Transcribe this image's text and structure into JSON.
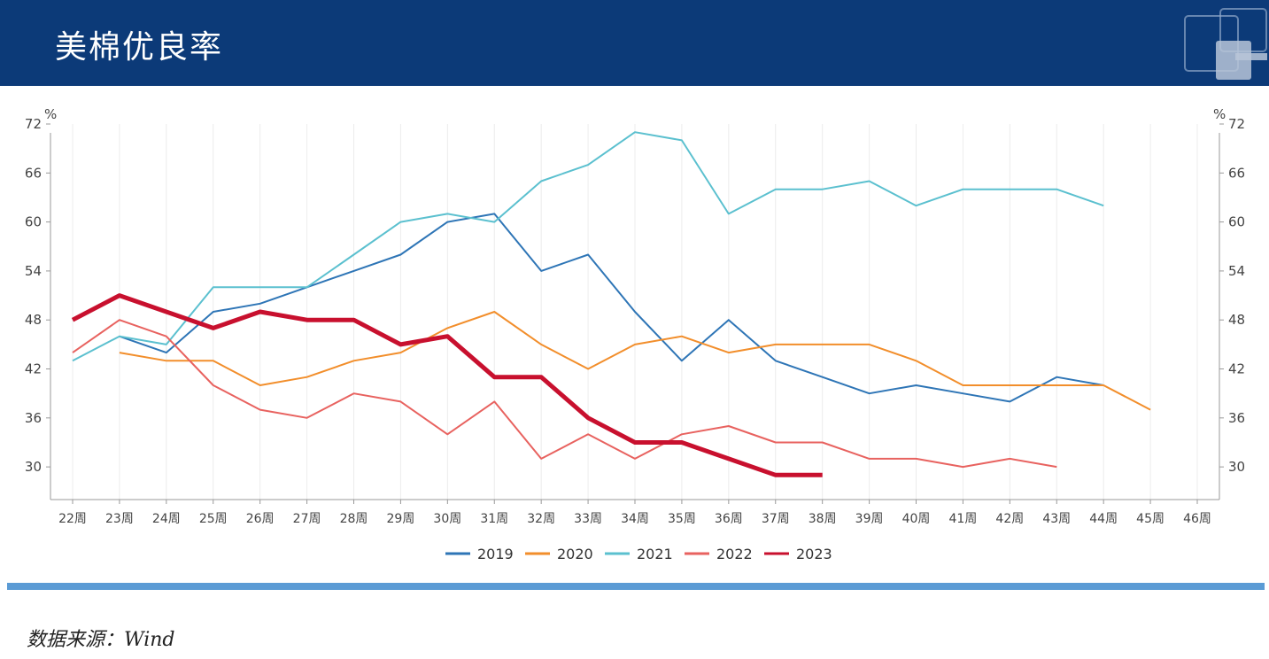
{
  "header": {
    "title": "美棉优良率"
  },
  "footer": {
    "source": "数据来源：Wind"
  },
  "chart_data": {
    "type": "line",
    "ylabel_left": "%",
    "ylabel_right": "%",
    "ylim": [
      26,
      72
    ],
    "yticks": [
      30,
      36,
      42,
      48,
      54,
      60,
      66,
      72
    ],
    "categories": [
      "22周",
      "23周",
      "24周",
      "25周",
      "26周",
      "27周",
      "28周",
      "29周",
      "30周",
      "31周",
      "32周",
      "33周",
      "34周",
      "35周",
      "36周",
      "37周",
      "38周",
      "39周",
      "40周",
      "41周",
      "42周",
      "43周",
      "44周",
      "45周",
      "46周"
    ],
    "series": [
      {
        "name": "2019",
        "color": "#2e75b6",
        "width": 2,
        "values": [
          null,
          46,
          44,
          49,
          50,
          52,
          54,
          56,
          60,
          61,
          54,
          56,
          49,
          43,
          48,
          43,
          41,
          39,
          40,
          39,
          38,
          41,
          40,
          null,
          null
        ]
      },
      {
        "name": "2020",
        "color": "#f28e2b",
        "width": 2,
        "values": [
          null,
          44,
          43,
          43,
          40,
          41,
          43,
          44,
          47,
          49,
          45,
          42,
          45,
          46,
          44,
          45,
          45,
          45,
          43,
          40,
          40,
          40,
          40,
          37,
          null
        ]
      },
      {
        "name": "2021",
        "color": "#5bc0cf",
        "width": 2,
        "values": [
          43,
          46,
          45,
          52,
          52,
          52,
          56,
          60,
          61,
          60,
          65,
          67,
          71,
          70,
          61,
          64,
          64,
          65,
          62,
          64,
          64,
          64,
          62,
          null,
          null
        ]
      },
      {
        "name": "2022",
        "color": "#e8625f",
        "width": 2,
        "values": [
          44,
          48,
          46,
          40,
          37,
          36,
          39,
          38,
          34,
          38,
          31,
          34,
          31,
          34,
          35,
          33,
          33,
          31,
          31,
          30,
          31,
          30,
          null,
          null,
          null
        ]
      },
      {
        "name": "2023",
        "color": "#c8102e",
        "width": 5,
        "values": [
          48,
          51,
          49,
          47,
          49,
          48,
          48,
          45,
          46,
          41,
          41,
          36,
          33,
          33,
          31,
          29,
          29,
          null,
          null,
          null,
          null,
          null,
          null,
          null,
          null
        ]
      }
    ]
  }
}
